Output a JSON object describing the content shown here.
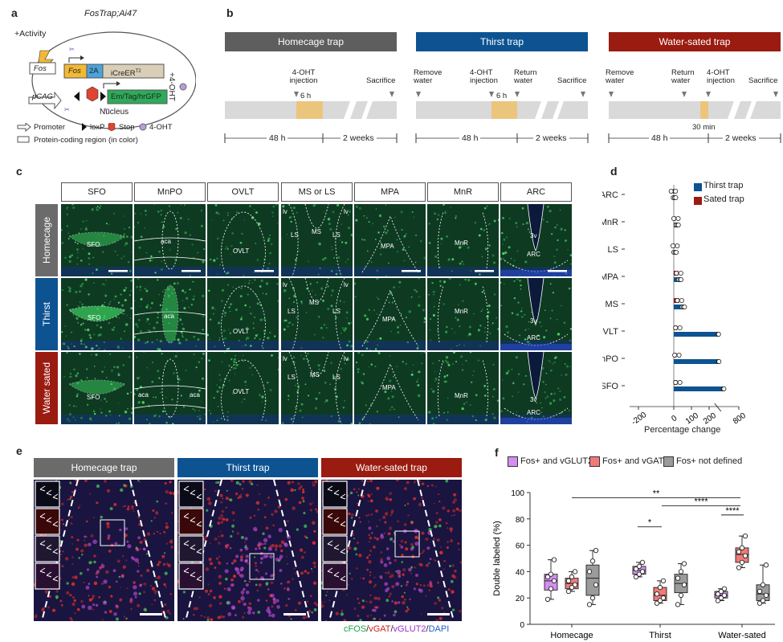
{
  "panel_a": {
    "label": "a",
    "title": "FosTrap;Ai47",
    "activity": "+Activity",
    "fos_promoter": "Fos",
    "fos_gene": "Fos",
    "t2a": "2A",
    "icreer": "iCreER",
    "icreer_sup": "T2",
    "ohtsign": "+4-OHT",
    "pcag": "pCAG",
    "reporter": "Em/Tag/hrGFP",
    "nucleus": "Nucleus",
    "legend_promoter": "Promoter",
    "legend_loxp": "loxP",
    "legend_stop": "Stop",
    "legend_4oht": "4-OHT",
    "legend_coding": "Protein-coding region (in color)",
    "colors": {
      "fos": "#f2b934",
      "t2a": "#4aa3d9",
      "icreer": "#d9cfb8",
      "reporter": "#2eaa5a",
      "stop": "#e0452f",
      "oht": "#b99be0"
    }
  },
  "panel_b": {
    "label": "b",
    "homecage": {
      "title": "Homecage trap",
      "color": "#5e5e5e",
      "inject": "4-OHT injection",
      "dur": "6 h",
      "sacrifice": "Sacrifice",
      "t1": "48 h",
      "t2": "2 weeks"
    },
    "thirst": {
      "title": "Thirst trap",
      "color": "#0d5392",
      "remove": "Remove water",
      "inject": "4-OHT injection",
      "ret": "Return water",
      "dur": "6 h",
      "sacrifice": "Sacrifice",
      "t1": "48 h",
      "t2": "2 weeks"
    },
    "sated": {
      "title": "Water-sated trap",
      "color": "#9a1b10",
      "remove": "Remove water",
      "ret": "Return water",
      "inject": "4-OHT injection",
      "sacrifice": "Sacrifice",
      "dur": "30 min",
      "t1": "48 h",
      "t2": "2 weeks"
    }
  },
  "panel_c": {
    "label": "c",
    "regions": [
      "SFO",
      "MnPO",
      "OVLT",
      "MS or LS",
      "MPA",
      "MnR",
      "ARC"
    ],
    "rows": [
      {
        "name": "Homecage",
        "color": "#6b6b6b"
      },
      {
        "name": "Thirst",
        "color": "#0d5392"
      },
      {
        "name": "Water sated",
        "color": "#9a1b10"
      }
    ],
    "tags": {
      "sfo": "SFO",
      "aca": "aca",
      "ovlt": "OVLT",
      "ls": "LS",
      "ms": "MS",
      "lv": "lv",
      "mpa": "MPA",
      "mnr": "MnR",
      "v3": "3v",
      "arc": "ARC"
    }
  },
  "panel_d": {
    "label": "d",
    "legend": [
      {
        "name": "Thirst trap",
        "color": "#0d5392"
      },
      {
        "name": "Sated trap",
        "color": "#9a1b10"
      }
    ],
    "xlabel": "Percentage change",
    "chart_data": {
      "type": "bar",
      "orientation": "horizontal",
      "categories": [
        "ARC",
        "MnR",
        "LS",
        "MPA",
        "MS",
        "OVLT",
        "MnPO",
        "SFO"
      ],
      "series": [
        {
          "name": "Thirst trap",
          "values": [
            5,
            20,
            8,
            35,
            55,
            260,
            270,
            400
          ]
        },
        {
          "name": "Sated trap",
          "values": [
            -5,
            10,
            5,
            25,
            30,
            20,
            15,
            20
          ]
        }
      ],
      "xticks": [
        -200,
        0,
        100,
        200,
        800
      ],
      "xlim": [
        -250,
        800
      ],
      "xlabel": "Percentage change"
    }
  },
  "panel_e": {
    "label": "e",
    "titles": [
      {
        "text": "Homecage trap",
        "color": "#6b6b6b"
      },
      {
        "text": "Thirst trap",
        "color": "#0d5392"
      },
      {
        "text": "Water-sated trap",
        "color": "#9a1b10"
      }
    ],
    "legend": [
      {
        "text": "cFOS",
        "color": "#1aa34a"
      },
      {
        "text": "/",
        "color": "#222"
      },
      {
        "text": "vGAT",
        "color": "#d1201d"
      },
      {
        "text": "/",
        "color": "#222"
      },
      {
        "text": "vGLUT2",
        "color": "#9b2fc9"
      },
      {
        "text": "/",
        "color": "#222"
      },
      {
        "text": "DAPI",
        "color": "#1e5fc9"
      }
    ]
  },
  "panel_f": {
    "label": "f",
    "legend": [
      {
        "text": "Fos+ and vGLUT2+",
        "color": "#d48df0"
      },
      {
        "text": "Fos+ and vGAT+",
        "color": "#f07a78"
      },
      {
        "text": "Fos+ not defined",
        "color": "#9b9b9b"
      }
    ],
    "ylabel": "Double labeled (%)",
    "sig": [
      "**",
      "****",
      "*",
      "****"
    ],
    "chart_data": {
      "type": "box",
      "categories": [
        "Homecage",
        "Thirst",
        "Water-sated"
      ],
      "ylim": [
        0,
        100
      ],
      "yticks": [
        0,
        20,
        40,
        60,
        80,
        100
      ],
      "ylabel": "Double labeled (%)",
      "series": [
        {
          "name": "Fos+ and vGLUT2+",
          "boxes": [
            {
              "min": 19,
              "q1": 26,
              "median": 33,
              "q3": 38,
              "max": 49,
              "points": [
                19,
                27,
                33,
                36,
                38,
                49
              ]
            },
            {
              "min": 36,
              "q1": 38,
              "median": 41,
              "q3": 44,
              "max": 47,
              "points": [
                36,
                38,
                40,
                42,
                44,
                47
              ]
            },
            {
              "min": 18,
              "q1": 20,
              "median": 22,
              "q3": 25,
              "max": 27,
              "points": [
                18,
                20,
                22,
                23,
                25,
                27
              ]
            }
          ]
        },
        {
          "name": "Fos+ and vGAT+",
          "boxes": [
            {
              "min": 25,
              "q1": 27,
              "median": 31,
              "q3": 35,
              "max": 40,
              "points": [
                25,
                28,
                30,
                33,
                36,
                40
              ]
            },
            {
              "min": 16,
              "q1": 18,
              "median": 22,
              "q3": 28,
              "max": 33,
              "points": [
                16,
                18,
                20,
                23,
                28,
                33
              ]
            },
            {
              "min": 43,
              "q1": 47,
              "median": 53,
              "q3": 58,
              "max": 67,
              "points": [
                43,
                47,
                52,
                55,
                58,
                67
              ]
            }
          ]
        },
        {
          "name": "Fos+ not defined",
          "boxes": [
            {
              "min": 15,
              "q1": 22,
              "median": 35,
              "q3": 45,
              "max": 56,
              "points": [
                15,
                20,
                30,
                40,
                48,
                56
              ]
            },
            {
              "min": 15,
              "q1": 24,
              "median": 31,
              "q3": 38,
              "max": 46,
              "points": [
                15,
                22,
                30,
                35,
                40,
                46
              ]
            },
            {
              "min": 16,
              "q1": 18,
              "median": 23,
              "q3": 30,
              "max": 45,
              "points": [
                16,
                18,
                22,
                25,
                30,
                45
              ]
            }
          ]
        }
      ]
    }
  }
}
